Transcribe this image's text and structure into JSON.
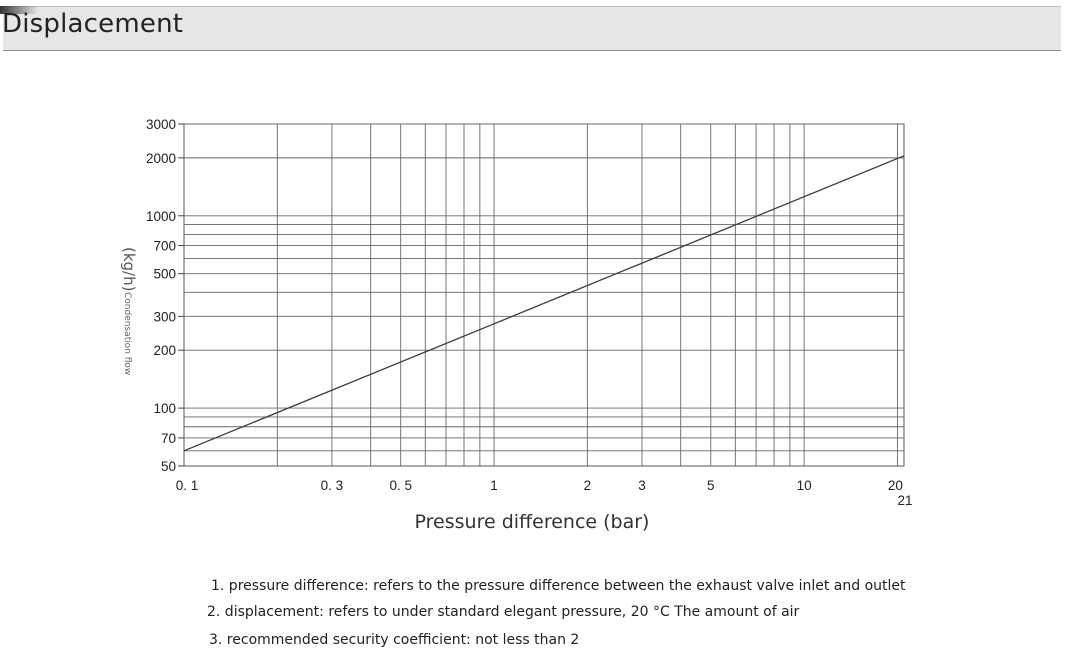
{
  "page": {
    "title": "Displacement"
  },
  "chart_data": {
    "type": "line",
    "x_scale": "log",
    "y_scale": "log",
    "xlabel": "Pressure difference (bar)",
    "ylabel_main": "(kg/h)",
    "ylabel_sub": "Condensation flow",
    "xlim": [
      0.1,
      21
    ],
    "ylim": [
      50,
      3000
    ],
    "grid": true,
    "x_ticks": [
      {
        "value": 0.1,
        "label": "0. 1"
      },
      {
        "value": 0.3,
        "label": "0. 3"
      },
      {
        "value": 0.5,
        "label": "0. 5"
      },
      {
        "value": 1,
        "label": "1"
      },
      {
        "value": 2,
        "label": "2"
      },
      {
        "value": 3,
        "label": "3"
      },
      {
        "value": 5,
        "label": "5"
      },
      {
        "value": 10,
        "label": "10"
      },
      {
        "value": 20,
        "label": "20"
      },
      {
        "value": 21,
        "label": "21"
      }
    ],
    "x_gridlines": [
      0.2,
      0.3,
      0.4,
      0.5,
      0.6,
      0.7,
      0.8,
      0.9,
      1,
      2,
      3,
      4,
      5,
      6,
      7,
      8,
      9,
      10,
      20
    ],
    "y_ticks": [
      {
        "value": 50,
        "label": "50"
      },
      {
        "value": 70,
        "label": "70"
      },
      {
        "value": 100,
        "label": "100"
      },
      {
        "value": 200,
        "label": "200"
      },
      {
        "value": 300,
        "label": "300"
      },
      {
        "value": 500,
        "label": "500"
      },
      {
        "value": 700,
        "label": "700"
      },
      {
        "value": 1000,
        "label": "1000"
      },
      {
        "value": 2000,
        "label": "2000"
      },
      {
        "value": 3000,
        "label": "3000"
      }
    ],
    "y_gridlines": [
      60,
      70,
      80,
      90,
      100,
      200,
      300,
      400,
      500,
      600,
      700,
      800,
      900,
      1000,
      2000,
      3000
    ],
    "series": [
      {
        "points": [
          [
            0.1,
            60
          ],
          [
            21,
            2050
          ]
        ]
      }
    ]
  },
  "notes": [
    "1. pressure difference: refers to the pressure difference between the exhaust valve inlet and outlet",
    "2. displacement: refers to under standard elegant pressure, 20 °C The amount of air",
    "3. recommended security coefficient: not less than 2"
  ]
}
